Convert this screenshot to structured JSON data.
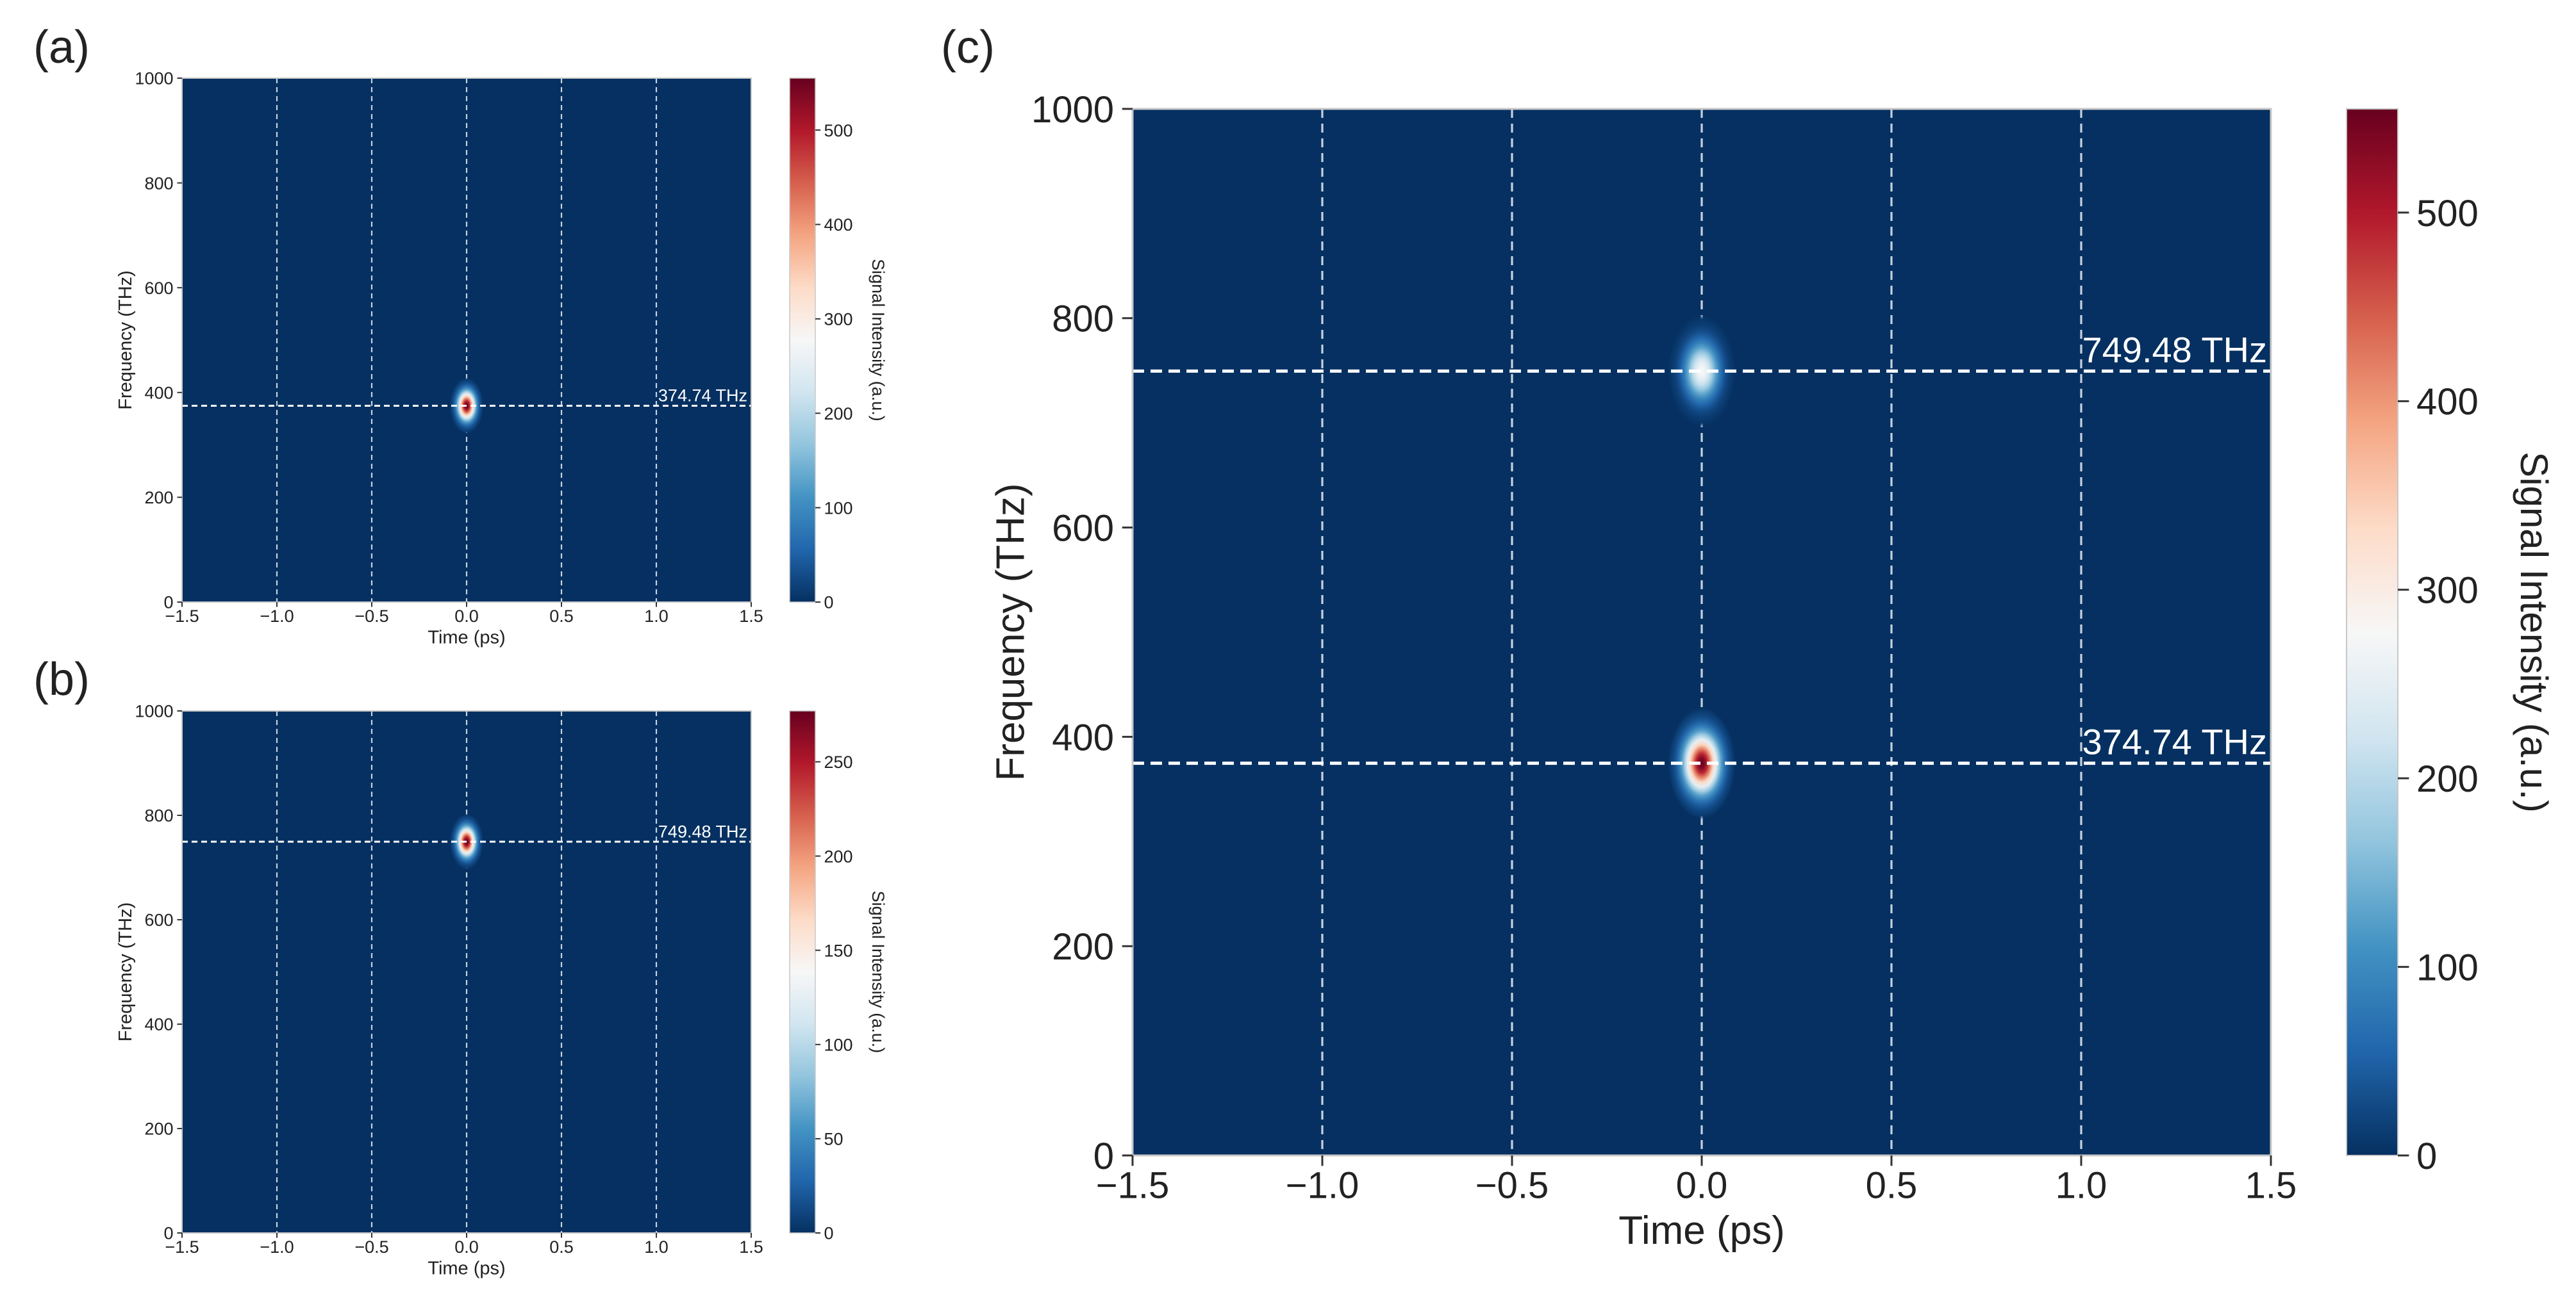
{
  "panels": [
    {
      "panel_label": "(a)"
    },
    {
      "panel_label": "(b)"
    },
    {
      "panel_label": "(c)"
    }
  ],
  "colormap": {
    "name": "RdBu_r",
    "stops": [
      "#053061",
      "#2166ac",
      "#4393c3",
      "#92c5de",
      "#d1e5f0",
      "#f7f7f7",
      "#fddbc7",
      "#f4a582",
      "#d6604d",
      "#b2182b",
      "#67001f"
    ]
  },
  "chart_data": [
    {
      "type": "heatmap",
      "panel": "(a)",
      "title": "",
      "xlabel": "Time (ps)",
      "ylabel": "Frequency (THz)",
      "xlim": [
        -1.5,
        1.5
      ],
      "ylim": [
        0,
        1000
      ],
      "xticks": [
        -1.5,
        -1.0,
        -0.5,
        0.0,
        0.5,
        1.0,
        1.5
      ],
      "xtick_labels": [
        "−1.5",
        "−1.0",
        "−0.5",
        "0.0",
        "0.5",
        "1.0",
        "1.5"
      ],
      "yticks": [
        0,
        200,
        400,
        600,
        800,
        1000
      ],
      "ytick_labels": [
        "0",
        "200",
        "400",
        "600",
        "800",
        "1000"
      ],
      "grid": true,
      "colorbar": {
        "label": "Signal Intensity (a.u.)",
        "range": [
          0,
          555
        ],
        "ticks": [
          0,
          100,
          200,
          300,
          400,
          500
        ],
        "tick_labels": [
          "0",
          "100",
          "200",
          "300",
          "400",
          "500"
        ]
      },
      "peaks": [
        {
          "time": 0.0,
          "frequency": 374.74,
          "intensity": 555,
          "freq_width": 18,
          "time_width": 0.03
        }
      ],
      "reference_lines": [
        {
          "frequency": 374.74,
          "label": "374.74 THz"
        }
      ]
    },
    {
      "type": "heatmap",
      "panel": "(b)",
      "title": "",
      "xlabel": "Time (ps)",
      "ylabel": "Frequency (THz)",
      "xlim": [
        -1.5,
        1.5
      ],
      "ylim": [
        0,
        1000
      ],
      "xticks": [
        -1.5,
        -1.0,
        -0.5,
        0.0,
        0.5,
        1.0,
        1.5
      ],
      "xtick_labels": [
        "−1.5",
        "−1.0",
        "−0.5",
        "0.0",
        "0.5",
        "1.0",
        "1.5"
      ],
      "yticks": [
        0,
        200,
        400,
        600,
        800,
        1000
      ],
      "ytick_labels": [
        "0",
        "200",
        "400",
        "600",
        "800",
        "1000"
      ],
      "grid": true,
      "colorbar": {
        "label": "Signal Intensity (a.u.)",
        "range": [
          0,
          277
        ],
        "ticks": [
          0,
          50,
          100,
          150,
          200,
          250
        ],
        "tick_labels": [
          "0",
          "50",
          "100",
          "150",
          "200",
          "250"
        ]
      },
      "peaks": [
        {
          "time": 0.0,
          "frequency": 749.48,
          "intensity": 277,
          "freq_width": 18,
          "time_width": 0.03
        }
      ],
      "reference_lines": [
        {
          "frequency": 749.48,
          "label": "749.48 THz"
        }
      ]
    },
    {
      "type": "heatmap",
      "panel": "(c)",
      "title": "",
      "xlabel": "Time (ps)",
      "ylabel": "Frequency (THz)",
      "xlim": [
        -1.5,
        1.5
      ],
      "ylim": [
        0,
        1000
      ],
      "xticks": [
        -1.5,
        -1.0,
        -0.5,
        0.0,
        0.5,
        1.0,
        1.5
      ],
      "xtick_labels": [
        "−1.5",
        "−1.0",
        "−0.5",
        "0.0",
        "0.5",
        "1.0",
        "1.5"
      ],
      "yticks": [
        0,
        200,
        400,
        600,
        800,
        1000
      ],
      "ytick_labels": [
        "0",
        "200",
        "400",
        "600",
        "800",
        "1000"
      ],
      "grid": true,
      "colorbar": {
        "label": "Signal Intensity (a.u.)",
        "range": [
          0,
          555
        ],
        "ticks": [
          0,
          100,
          200,
          300,
          400,
          500
        ],
        "tick_labels": [
          "0",
          "100",
          "200",
          "300",
          "400",
          "500"
        ]
      },
      "peaks": [
        {
          "time": 0.0,
          "frequency": 374.74,
          "intensity": 555,
          "freq_width": 18,
          "time_width": 0.03
        },
        {
          "time": 0.0,
          "frequency": 749.48,
          "intensity": 277,
          "freq_width": 18,
          "time_width": 0.03
        }
      ],
      "reference_lines": [
        {
          "frequency": 374.74,
          "label": "374.74 THz"
        },
        {
          "frequency": 749.48,
          "label": "749.48 THz"
        }
      ]
    }
  ]
}
